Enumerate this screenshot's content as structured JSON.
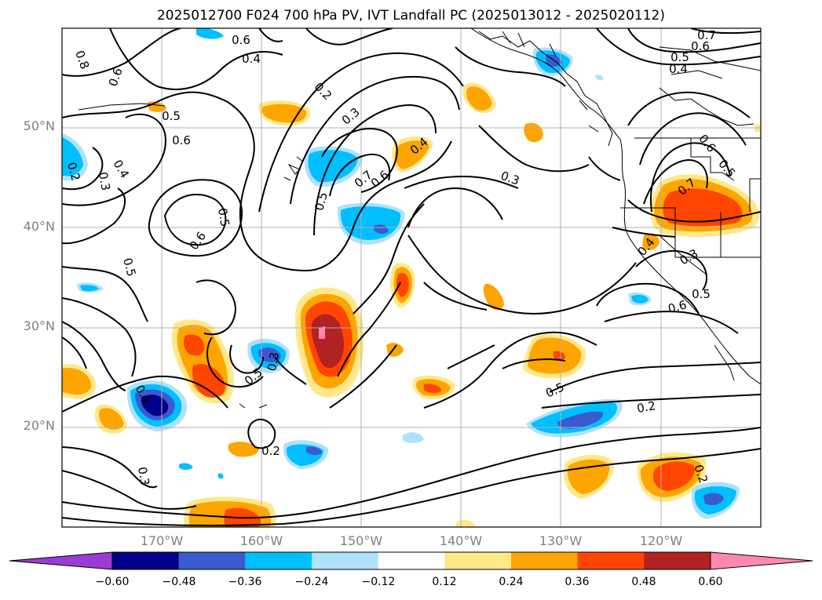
{
  "title": "2025012700 F024 700 hPa PV, IVT Landfall PC (2025013012 - 2025020112)",
  "lat_labels": [
    "50°N",
    "40°N",
    "30°N",
    "20°N"
  ],
  "lon_labels": [
    "170°W",
    "160°W",
    "150°W",
    "140°W",
    "130°W",
    "120°W"
  ],
  "colorbar": {
    "ticks": [
      "−0.60",
      "−0.48",
      "−0.36",
      "−0.24",
      "−0.12",
      "0.12",
      "0.24",
      "0.36",
      "0.48",
      "0.60"
    ],
    "colors": [
      "#9a3bd6",
      "#00008b",
      "#3a5bd0",
      "#00bfff",
      "#aee2fb",
      "#ffffff",
      "#ffe88a",
      "#ffa500",
      "#ff4500",
      "#b22222",
      "#ff88b0"
    ]
  },
  "contour_labels": [
    "0.6",
    "0.4",
    "0.8",
    "0.6",
    "0.2",
    "0.5",
    "0.6",
    "0.4",
    "0.3",
    "0.2",
    "0.3",
    "0.5",
    "0.6",
    "0.5",
    "0.7",
    "0.6",
    "0.5",
    "0.4",
    "0.3",
    "0.7",
    "0.6",
    "0.5",
    "0.4",
    "0.6",
    "0.5",
    "0.7",
    "0.4",
    "0.3",
    "0.5",
    "0.6",
    "0.5",
    "0.3",
    "0.4",
    "0.5",
    "0.2",
    "0.2",
    "0.3",
    "0.2"
  ]
}
